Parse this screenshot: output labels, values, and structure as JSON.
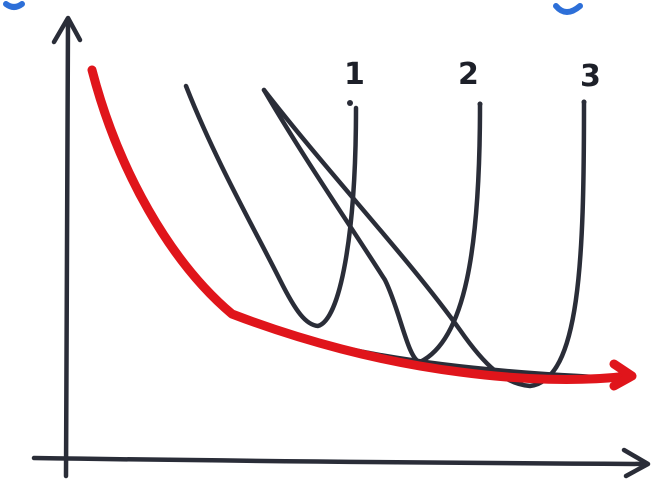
{
  "diagram": {
    "curve_labels": [
      "1",
      "2",
      "3"
    ],
    "colors": {
      "ink": "#2a2d38",
      "envelope": "#e0151b",
      "corner_marks": "#2d6fd8",
      "background": "#ffffff"
    }
  }
}
